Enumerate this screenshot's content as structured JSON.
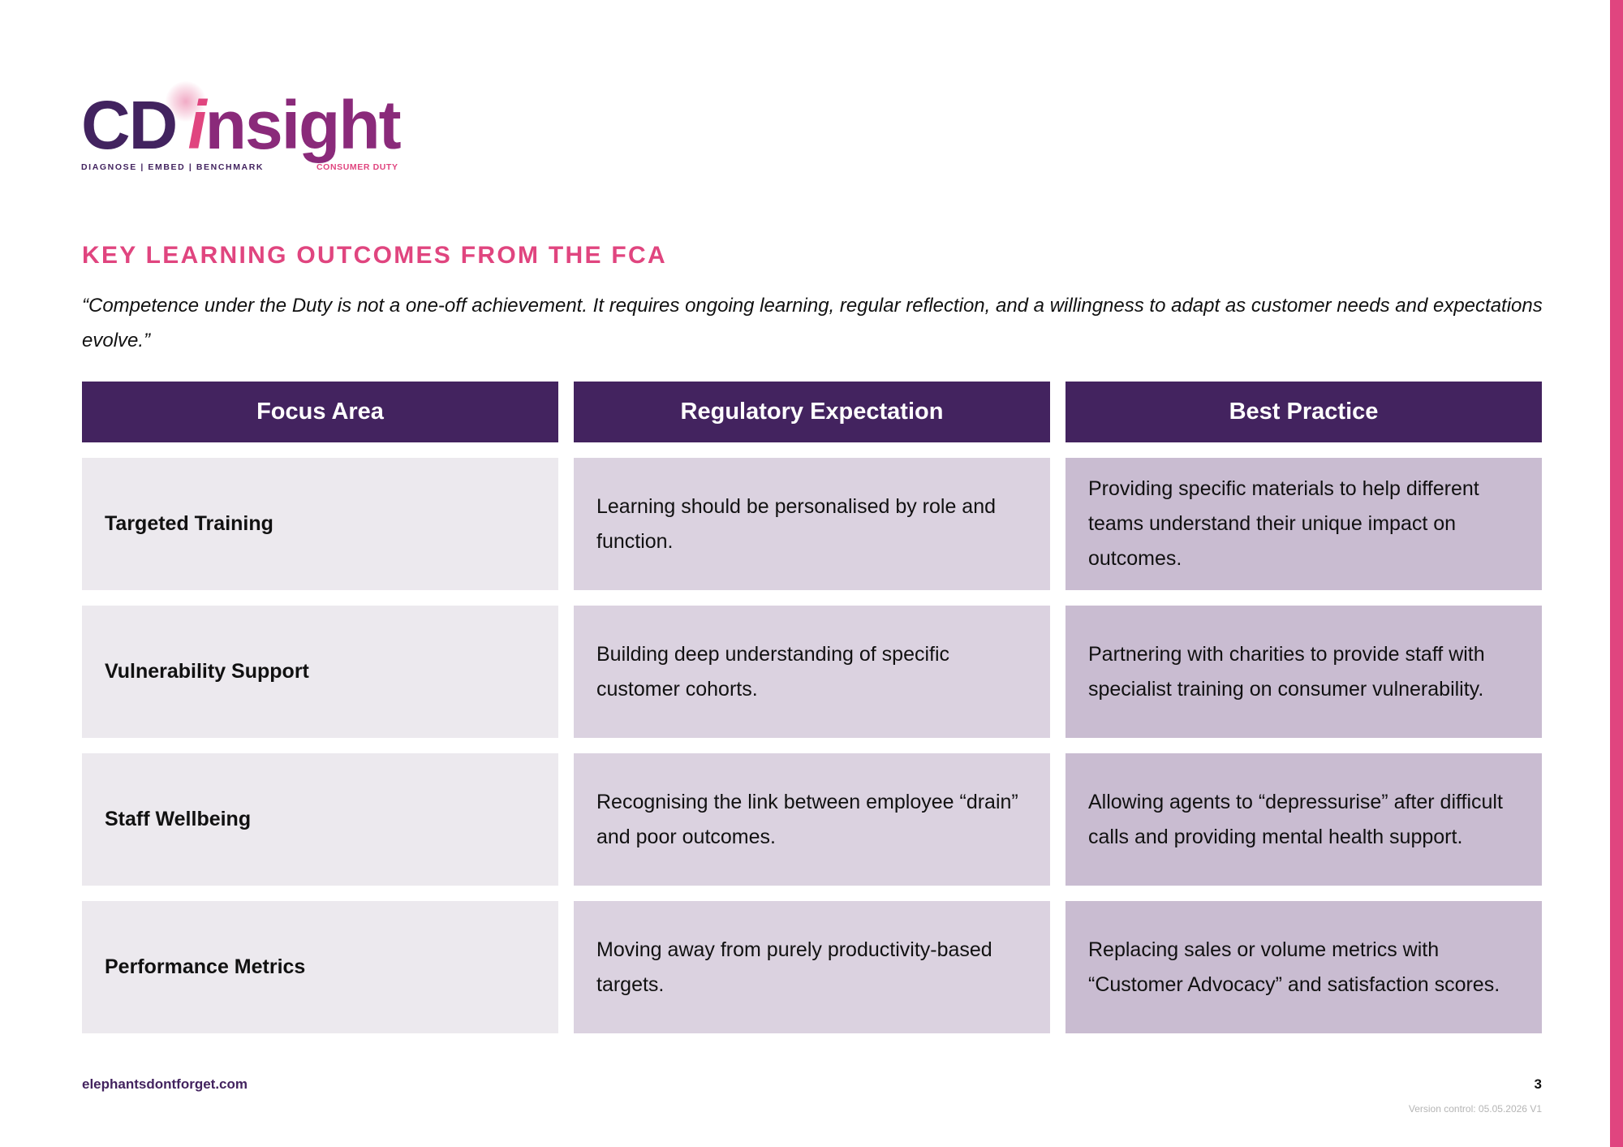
{
  "colors": {
    "brand_purple": "#43235f",
    "brand_pink": "#e0457f",
    "focus_cell": "#ece9ee",
    "expectation_cell": "#dbd2e0",
    "best_practice_cell": "#c9bcd1"
  },
  "logo": {
    "cd": "CD",
    "i": "i",
    "rest": "nsight",
    "tagline_left": "DIAGNOSE | EMBED | BENCHMARK",
    "tagline_right": "CONSUMER DUTY"
  },
  "heading": "KEY LEARNING OUTCOMES FROM THE FCA",
  "quote": "“Competence under the Duty is not a one-off achievement. It requires ongoing learning, regular reflection, and a willingness to adapt as customer needs and expectations evolve.”",
  "table": {
    "headers": [
      "Focus Area",
      "Regulatory Expectation",
      "Best Practice"
    ],
    "rows": [
      {
        "focus": "Targeted Training",
        "expectation": "Learning should be personalised by role and function.",
        "best_practice": "Providing specific materials to help different teams understand their unique impact on outcomes."
      },
      {
        "focus": "Vulnerability Support",
        "expectation": "Building deep understanding of specific customer cohorts.",
        "best_practice": "Partnering with charities to provide staff with specialist training on consumer vulnerability."
      },
      {
        "focus": "Staff Wellbeing",
        "expectation": "Recognising the link between employee “drain” and poor outcomes.",
        "best_practice": "Allowing agents to “depressurise” after difficult calls and providing mental health support."
      },
      {
        "focus": "Performance Metrics",
        "expectation": "Moving away from purely productivity-based targets.",
        "best_practice": "Replacing sales or volume metrics with “Customer Advocacy” and satisfaction scores."
      }
    ]
  },
  "footer": {
    "website": "elephantsdontforget.com",
    "page_number": "3",
    "version": "Version control: 05.05.2026 V1"
  }
}
